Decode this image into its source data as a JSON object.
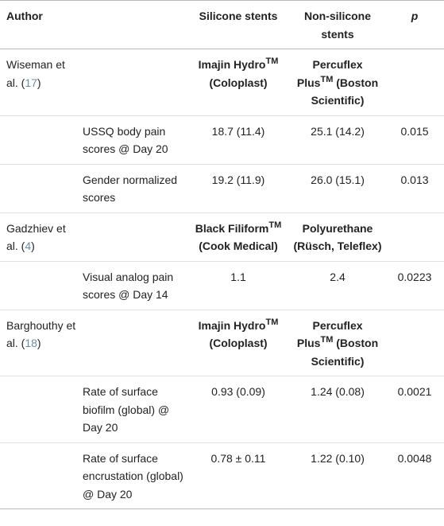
{
  "table": {
    "header": [
      "Author",
      "Silicone stents",
      "Non-silicone stents",
      "p"
    ],
    "groups": [
      {
        "author": [
          "Wiseman et al. (",
          "17",
          ")"
        ],
        "silicone": {
          "name": "Imajin Hydro",
          "mark": "TM",
          "maker": "(Coloplast)"
        },
        "non_silicone": {
          "name": "Percuflex Plus",
          "mark": "TM",
          "maker": "(Boston Scientific)"
        },
        "rows": [
          [
            "USSQ body pain scores @ Day 20",
            "18.7 (11.4)",
            "25.1 (14.2)",
            "0.015"
          ],
          [
            "Gender normalized scores",
            "19.2 (11.9)",
            "26.0 (15.1)",
            "0.013"
          ]
        ]
      },
      {
        "author": [
          "Gadzhiev et al. (",
          "4",
          ")"
        ],
        "silicone": {
          "name": "Black Filiform",
          "mark": "TM",
          "maker": "(Cook Medical)"
        },
        "non_silicone": {
          "name": "Polyurethane",
          "maker": "(Rüsch, Teleflex)"
        },
        "rows": [
          [
            "Visual analog pain scores @ Day 14",
            "1.1",
            "2.4",
            "0.0223"
          ]
        ]
      },
      {
        "author": [
          "Barghouthy et al. (",
          "18",
          ")"
        ],
        "silicone": {
          "name": "Imajin Hydro",
          "mark": "TM",
          "maker": "(Coloplast)"
        },
        "non_silicone": {
          "name": "Percuflex Plus",
          "mark": "TM",
          "maker": "(Boston Scientific)"
        },
        "rows": [
          [
            "Rate of surface biofilm (global) @ Day 20",
            "0.93 (0.09)",
            "1.24 (0.08)",
            "0.0021"
          ],
          [
            "Rate of surface encrustation (global) @ Day 20",
            "0.78 ± 0.11",
            "1.22 (0.10)",
            "0.0048"
          ]
        ]
      }
    ]
  }
}
